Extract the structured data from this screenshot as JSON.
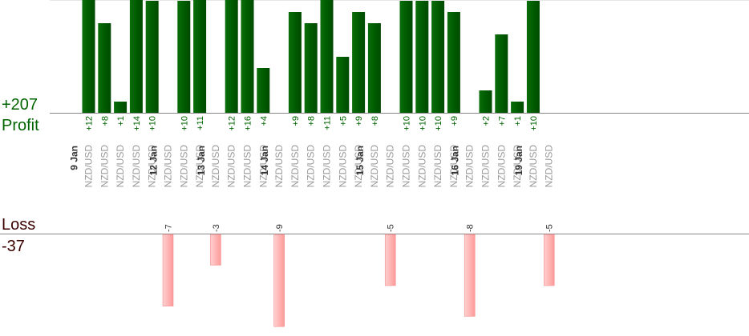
{
  "chart_data": {
    "type": "bar",
    "profit_total": "+207",
    "profit_label": "Profit",
    "loss_label": "Loss",
    "loss_total": "-37",
    "colors": {
      "profit": "#006400",
      "loss": "#ffb3b3",
      "axis": "#888888",
      "date": "#333333",
      "pair": "#999999"
    },
    "dates": [
      {
        "label": "9 Jan",
        "index": 0
      },
      {
        "label": "12 Jan",
        "index": 5
      },
      {
        "label": "13 Jan",
        "index": 8
      },
      {
        "label": "14 Jan",
        "index": 12
      },
      {
        "label": "15 Jan",
        "index": 18
      },
      {
        "label": "16 Jan",
        "index": 24
      },
      {
        "label": "19 Jan",
        "index": 28
      }
    ],
    "trades": [
      {
        "pair": "NZD/USD",
        "value": 12
      },
      {
        "pair": "NZD/USD",
        "value": 8
      },
      {
        "pair": "NZD/USD",
        "value": 1
      },
      {
        "pair": "NZD/USD",
        "value": 14
      },
      {
        "pair": "NZD/USD",
        "value": 10
      },
      {
        "pair": "NZD/USD",
        "value": -7
      },
      {
        "pair": "NZD/USD",
        "value": 10
      },
      {
        "pair": "NZD/USD",
        "value": 11
      },
      {
        "pair": "NZD/USD",
        "value": -3
      },
      {
        "pair": "NZD/USD",
        "value": 12
      },
      {
        "pair": "NZD/USD",
        "value": 16
      },
      {
        "pair": "NZD/USD",
        "value": 4
      },
      {
        "pair": "NZD/USD",
        "value": -9
      },
      {
        "pair": "NZD/USD",
        "value": 9
      },
      {
        "pair": "NZD/USD",
        "value": 8
      },
      {
        "pair": "NZD/USD",
        "value": 11
      },
      {
        "pair": "NZD/USD",
        "value": 5
      },
      {
        "pair": "NZD/USD",
        "value": 9
      },
      {
        "pair": "NZD/USD",
        "value": 8
      },
      {
        "pair": "NZD/USD",
        "value": -5
      },
      {
        "pair": "NZD/USD",
        "value": 10
      },
      {
        "pair": "NZD/USD",
        "value": 10
      },
      {
        "pair": "NZD/USD",
        "value": 10
      },
      {
        "pair": "NZD/USD",
        "value": 9
      },
      {
        "pair": "NZD/USD",
        "value": -8
      },
      {
        "pair": "NZD/USD",
        "value": 2
      },
      {
        "pair": "NZD/USD",
        "value": 7
      },
      {
        "pair": "NZD/USD",
        "value": 1
      },
      {
        "pair": "NZD/USD",
        "value": 10
      },
      {
        "pair": "NZD/USD",
        "value": -5
      }
    ]
  }
}
